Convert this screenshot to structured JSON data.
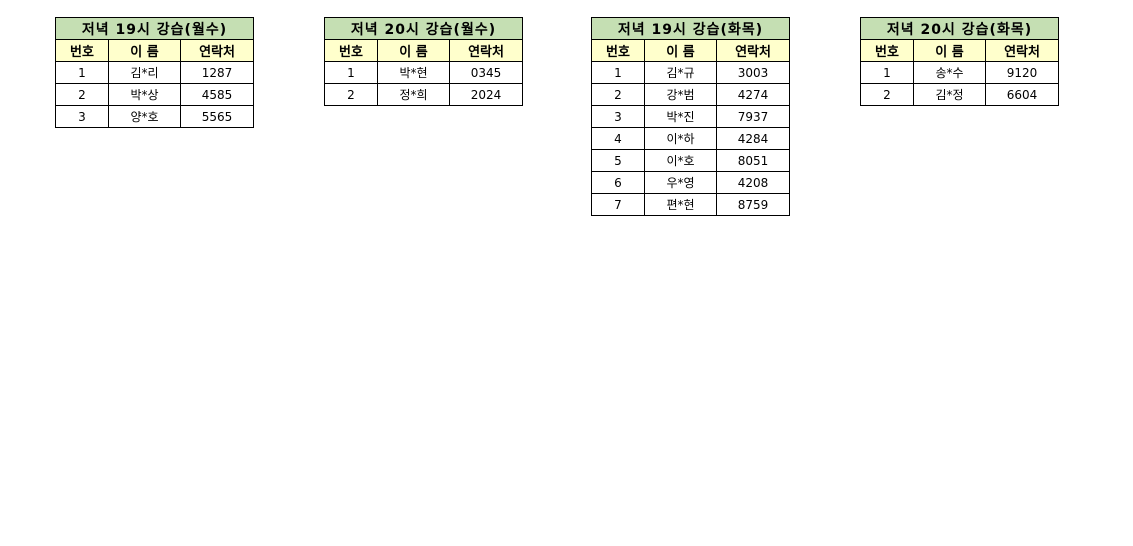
{
  "headers": {
    "no": "번호",
    "name": "이 름",
    "contact": "연락처"
  },
  "tables": [
    {
      "title": "저녁 19시 강습(월수)",
      "rows": [
        {
          "no": "1",
          "name": "김*리",
          "contact": "1287"
        },
        {
          "no": "2",
          "name": "박*상",
          "contact": "4585"
        },
        {
          "no": "3",
          "name": "양*호",
          "contact": "5565"
        }
      ]
    },
    {
      "title": "저녁 20시 강습(월수)",
      "rows": [
        {
          "no": "1",
          "name": "박*현",
          "contact": "0345"
        },
        {
          "no": "2",
          "name": "정*희",
          "contact": "2024"
        }
      ]
    },
    {
      "title": "저녁 19시 강습(화목)",
      "rows": [
        {
          "no": "1",
          "name": "김*규",
          "contact": "3003"
        },
        {
          "no": "2",
          "name": "강*범",
          "contact": "4274"
        },
        {
          "no": "3",
          "name": "박*진",
          "contact": "7937"
        },
        {
          "no": "4",
          "name": "이*하",
          "contact": "4284"
        },
        {
          "no": "5",
          "name": "이*호",
          "contact": "8051"
        },
        {
          "no": "6",
          "name": "우*영",
          "contact": "4208"
        },
        {
          "no": "7",
          "name": "편*현",
          "contact": "8759"
        }
      ]
    },
    {
      "title": "저녁 20시 강습(화목)",
      "rows": [
        {
          "no": "1",
          "name": "송*수",
          "contact": "9120"
        },
        {
          "no": "2",
          "name": "김*정",
          "contact": "6604"
        }
      ]
    }
  ],
  "colors": {
    "title_bg": "#c5dfb3",
    "header_bg": "#ffffcc"
  }
}
